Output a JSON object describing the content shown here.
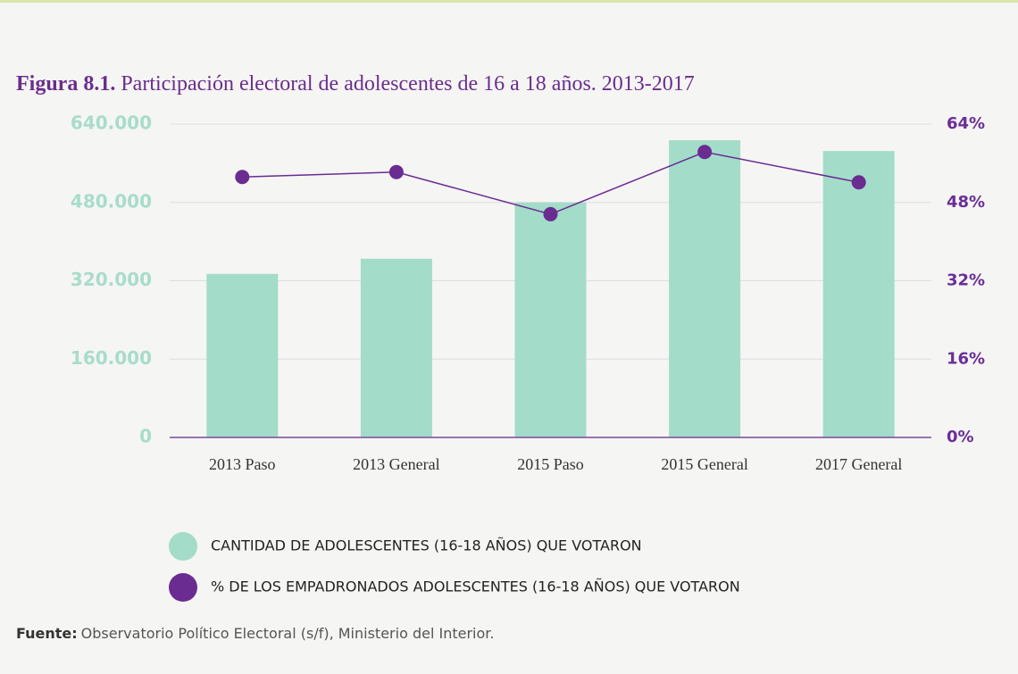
{
  "chart_data": {
    "type": "bar",
    "figure_label": "Figura 8.1.",
    "title": "Participación electoral de adolescentes de 16 a 18 años. 2013-2017",
    "categories": [
      "2013 Paso",
      "2013 General",
      "2015 Paso",
      "2015 General",
      "2017 General"
    ],
    "series": [
      {
        "name": "CANTIDAD DE ADOLESCENTES (16-18 AÑOS) QUE VOTARON",
        "type": "bar",
        "color": "#a3dcc9",
        "values": [
          334000,
          365000,
          480000,
          607000,
          585000
        ]
      },
      {
        "name": "% DE LOS EMPADRONADOS ADOLESCENTES (16-18 AÑOS) QUE VOTARON",
        "type": "line",
        "axis": "y2",
        "color": "#6a2c91",
        "values": [
          53.2,
          54.2,
          45.6,
          58.3,
          52.1
        ]
      }
    ],
    "ylim": [
      0,
      640000
    ],
    "yticks": [
      0,
      {
        "value": 160000,
        "label": "160.000"
      },
      {
        "value": 320000,
        "label": "320.000"
      },
      {
        "value": 480000,
        "label": "480.000"
      },
      {
        "value": 640000,
        "label": "640.000"
      }
    ],
    "y2lim": [
      0,
      64
    ],
    "y2ticks": [
      {
        "value": 0,
        "label": "0%"
      },
      {
        "value": 16,
        "label": "16%"
      },
      {
        "value": 32,
        "label": "32%"
      },
      {
        "value": 48,
        "label": "48%"
      },
      {
        "value": 64,
        "label": "64%"
      }
    ],
    "grid": true,
    "source_label": "Fuente:",
    "source": "Observatorio Político Electoral (s/f), Ministerio del Interior."
  }
}
